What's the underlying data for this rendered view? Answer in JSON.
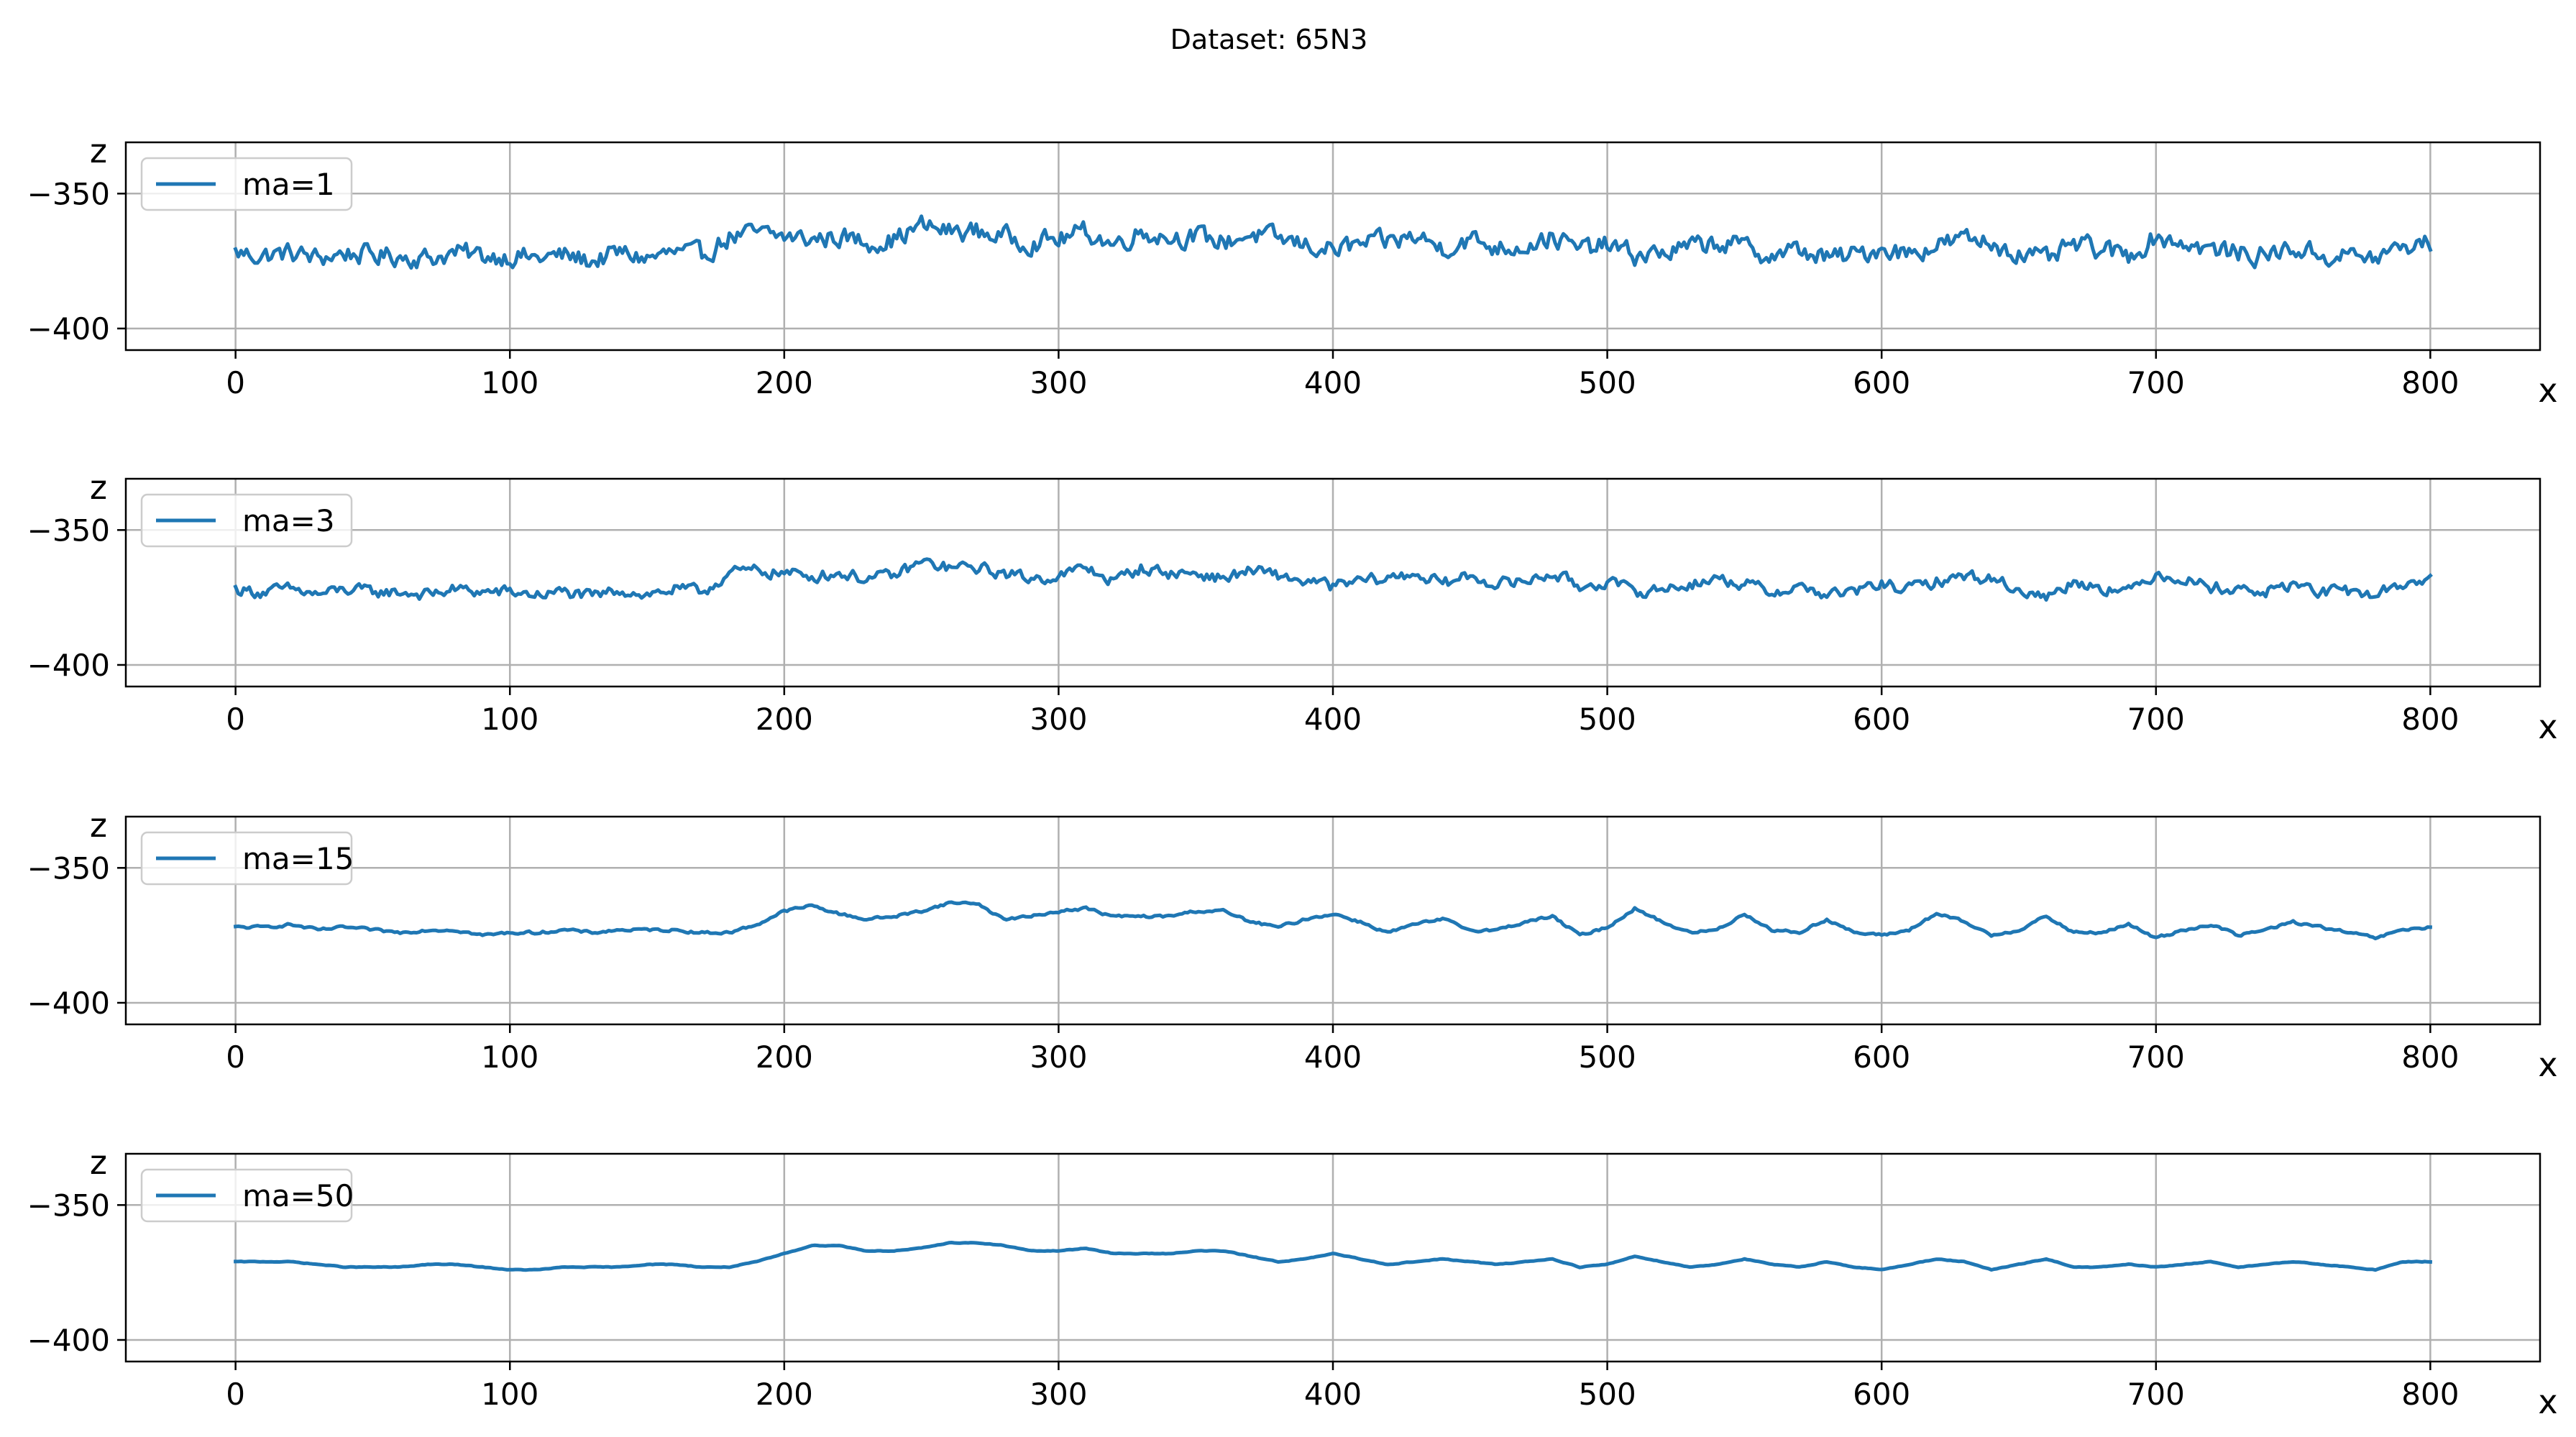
{
  "figure": {
    "suptitle": "Dataset: 65N3"
  },
  "colors": {
    "series": "#1f77b4",
    "grid": "#b0b0b0",
    "background": "#ffffff"
  },
  "chart_data": [
    {
      "type": "line",
      "xlabel": "x",
      "ylabel": "z",
      "xlim": [
        -40,
        840
      ],
      "ylim": [
        -408,
        -331
      ],
      "xticks": [
        0,
        100,
        200,
        300,
        400,
        500,
        600,
        700,
        800
      ],
      "xtick_labels": [
        "0",
        "100",
        "200",
        "300",
        "400",
        "500",
        "600",
        "700",
        "800"
      ],
      "yticks": [
        -350,
        -400
      ],
      "ytick_labels": [
        "−350",
        "−400"
      ],
      "grid": true,
      "legend_position": "upper-left",
      "series": [
        {
          "name": "ma=1",
          "x_range": [
            0,
            800
          ],
          "noise": 6,
          "values": [
            -372,
            -373,
            -372,
            -374,
            -372,
            -373,
            -373,
            -374,
            -372,
            -373,
            -373,
            -374,
            -373,
            -375,
            -372,
            -374,
            -372,
            -373,
            -366,
            -365,
            -366,
            -367,
            -366,
            -368,
            -367,
            -362,
            -364,
            -364,
            -366,
            -368,
            -367,
            -364,
            -369,
            -364,
            -366,
            -366,
            -368,
            -365,
            -367,
            -369,
            -371,
            -369,
            -368,
            -366,
            -370,
            -367,
            -370,
            -369,
            -366,
            -371,
            -369,
            -373,
            -372,
            -370,
            -368,
            -370,
            -373,
            -371,
            -374,
            -373,
            -370,
            -372,
            -369,
            -367,
            -368,
            -372,
            -375,
            -369,
            -371,
            -373,
            -366,
            -368,
            -371,
            -372,
            -373,
            -370,
            -373,
            -373,
            -374,
            -370,
            -368
          ]
        }
      ]
    },
    {
      "type": "line",
      "xlabel": "x",
      "ylabel": "z",
      "xlim": [
        -40,
        840
      ],
      "ylim": [
        -408,
        -331
      ],
      "xticks": [
        0,
        100,
        200,
        300,
        400,
        500,
        600,
        700,
        800
      ],
      "xtick_labels": [
        "0",
        "100",
        "200",
        "300",
        "400",
        "500",
        "600",
        "700",
        "800"
      ],
      "yticks": [
        -350,
        -400
      ],
      "ytick_labels": [
        "−350",
        "−400"
      ],
      "grid": true,
      "legend_position": "upper-left",
      "series": [
        {
          "name": "ma=3",
          "x_range": [
            0,
            800
          ],
          "noise": 3.5,
          "values": [
            -372,
            -373,
            -372,
            -374,
            -372,
            -373,
            -373,
            -374,
            -372,
            -373,
            -373,
            -374,
            -373,
            -375,
            -372,
            -374,
            -372,
            -373,
            -366,
            -365,
            -366,
            -367,
            -366,
            -368,
            -367,
            -362,
            -364,
            -364,
            -366,
            -368,
            -367,
            -364,
            -369,
            -364,
            -366,
            -366,
            -368,
            -365,
            -367,
            -369,
            -371,
            -369,
            -368,
            -366,
            -370,
            -367,
            -370,
            -369,
            -366,
            -371,
            -369,
            -373,
            -372,
            -370,
            -368,
            -370,
            -373,
            -371,
            -374,
            -373,
            -370,
            -372,
            -369,
            -367,
            -368,
            -372,
            -375,
            -369,
            -371,
            -373,
            -366,
            -368,
            -371,
            -372,
            -373,
            -370,
            -373,
            -373,
            -374,
            -370,
            -368
          ]
        }
      ]
    },
    {
      "type": "line",
      "xlabel": "x",
      "ylabel": "z",
      "xlim": [
        -40,
        840
      ],
      "ylim": [
        -408,
        -331
      ],
      "xticks": [
        0,
        100,
        200,
        300,
        400,
        500,
        600,
        700,
        800
      ],
      "xtick_labels": [
        "0",
        "100",
        "200",
        "300",
        "400",
        "500",
        "600",
        "700",
        "800"
      ],
      "yticks": [
        -350,
        -400
      ],
      "ytick_labels": [
        "−350",
        "−400"
      ],
      "grid": true,
      "legend_position": "upper-left",
      "series": [
        {
          "name": "ma=15",
          "x_range": [
            0,
            800
          ],
          "noise": 0.8,
          "values": [
            -372,
            -372,
            -371,
            -373,
            -372,
            -373,
            -374,
            -373,
            -373,
            -375,
            -374,
            -374,
            -373,
            -374,
            -373,
            -373,
            -373,
            -374,
            -374,
            -371,
            -366,
            -364,
            -367,
            -369,
            -368,
            -366,
            -363,
            -363,
            -369,
            -368,
            -366,
            -365,
            -368,
            -368,
            -368,
            -366,
            -366,
            -370,
            -372,
            -369,
            -367,
            -370,
            -374,
            -371,
            -369,
            -373,
            -373,
            -370,
            -368,
            -375,
            -372,
            -365,
            -370,
            -374,
            -373,
            -367,
            -373,
            -374,
            -369,
            -374,
            -375,
            -373,
            -367,
            -370,
            -375,
            -373,
            -368,
            -374,
            -374,
            -371,
            -376,
            -373,
            -371,
            -375,
            -373,
            -370,
            -372,
            -374,
            -376,
            -373,
            -372
          ]
        }
      ]
    },
    {
      "type": "line",
      "xlabel": "x",
      "ylabel": "z",
      "xlim": [
        -40,
        840
      ],
      "ylim": [
        -408,
        -331
      ],
      "xticks": [
        0,
        100,
        200,
        300,
        400,
        500,
        600,
        700,
        800
      ],
      "xtick_labels": [
        "0",
        "100",
        "200",
        "300",
        "400",
        "500",
        "600",
        "700",
        "800"
      ],
      "yticks": [
        -350,
        -400
      ],
      "ytick_labels": [
        "−350",
        "−400"
      ],
      "grid": true,
      "legend_position": "upper-left",
      "series": [
        {
          "name": "ma=50",
          "x_range": [
            0,
            800
          ],
          "noise": 0.2,
          "values": [
            -371,
            -371,
            -371,
            -372,
            -373,
            -373,
            -373,
            -372,
            -372,
            -373,
            -374,
            -374,
            -373,
            -373,
            -373,
            -372,
            -372,
            -373,
            -373,
            -371,
            -368,
            -365,
            -365,
            -367,
            -367,
            -366,
            -364,
            -364,
            -365,
            -367,
            -367,
            -366,
            -368,
            -368,
            -368,
            -367,
            -367,
            -369,
            -371,
            -370,
            -368,
            -370,
            -372,
            -371,
            -370,
            -371,
            -372,
            -371,
            -370,
            -373,
            -372,
            -369,
            -371,
            -373,
            -372,
            -370,
            -372,
            -373,
            -371,
            -373,
            -374,
            -372,
            -370,
            -371,
            -374,
            -372,
            -370,
            -373,
            -373,
            -372,
            -373,
            -372,
            -371,
            -373,
            -372,
            -371,
            -372,
            -373,
            -374,
            -371,
            -371
          ]
        }
      ]
    }
  ]
}
